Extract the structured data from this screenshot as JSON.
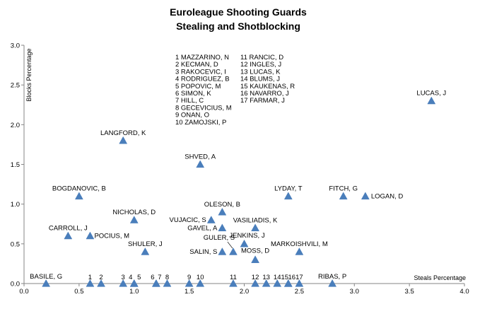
{
  "chart_data": {
    "type": "scatter",
    "title": "Euroleague Shooting Guards",
    "subtitle": "Stealing and Shotblocking",
    "xlabel": "Steals Percentage",
    "ylabel": "Blocks Percentage",
    "xlim": [
      0,
      4
    ],
    "ylim": [
      0,
      3
    ],
    "x_ticks": [
      "0.0",
      "0.5",
      "1.0",
      "1.5",
      "2.0",
      "2.5",
      "3.0",
      "3.5",
      "4.0"
    ],
    "y_ticks": [
      "0.0",
      "0.5",
      "1.0",
      "1.5",
      "2.0",
      "2.5",
      "3.0"
    ],
    "grid": false,
    "marker_color": "#4a7ebb",
    "points": [
      {
        "label": "LUCAS, J",
        "x": 3.7,
        "y": 2.3
      },
      {
        "label": "LANGFORD, K",
        "x": 0.9,
        "y": 1.8
      },
      {
        "label": "SHVED, A",
        "x": 1.6,
        "y": 1.5
      },
      {
        "label": "BOGDANOVIC, B",
        "x": 0.5,
        "y": 1.1
      },
      {
        "label": "LYDAY, T",
        "x": 2.4,
        "y": 1.1
      },
      {
        "label": "FITCH, G",
        "x": 2.9,
        "y": 1.1
      },
      {
        "label": "LOGAN, D",
        "x": 3.1,
        "y": 1.1
      },
      {
        "label": "OLESON, B",
        "x": 1.8,
        "y": 0.9
      },
      {
        "label": "NICHOLAS, D",
        "x": 1.0,
        "y": 0.8
      },
      {
        "label": "VUJACIC, S",
        "x": 1.7,
        "y": 0.8
      },
      {
        "label": "VASILIADIS, K",
        "x": 2.1,
        "y": 0.7
      },
      {
        "label": "GAVEL, A",
        "x": 1.8,
        "y": 0.7
      },
      {
        "label": "CARROLL, J",
        "x": 0.4,
        "y": 0.6
      },
      {
        "label": "POCIUS, M",
        "x": 0.6,
        "y": 0.6
      },
      {
        "label": "JENKINS, J",
        "x": 2.0,
        "y": 0.5
      },
      {
        "label": "GULER, S",
        "x": 1.9,
        "y": 0.4
      },
      {
        "label": "SHULER, J",
        "x": 1.1,
        "y": 0.4
      },
      {
        "label": "SALIN, S",
        "x": 1.8,
        "y": 0.4
      },
      {
        "label": "MARKOISHVILI, M",
        "x": 2.5,
        "y": 0.4
      },
      {
        "label": "MOSS, D",
        "x": 2.1,
        "y": 0.3
      },
      {
        "label": "BASILE, G",
        "x": 0.2,
        "y": 0.0
      },
      {
        "label": "RIBAS, P",
        "x": 2.8,
        "y": 0.0
      },
      {
        "label": "1",
        "x": 0.6,
        "y": 0.0
      },
      {
        "label": "2",
        "x": 0.7,
        "y": 0.0
      },
      {
        "label": "3",
        "x": 0.9,
        "y": 0.0
      },
      {
        "label": "4",
        "x": 1.0,
        "y": 0.0
      },
      {
        "label": "5",
        "x": 1.0,
        "y": 0.0
      },
      {
        "label": "6",
        "x": 1.2,
        "y": 0.0
      },
      {
        "label": "7",
        "x": 1.2,
        "y": 0.0
      },
      {
        "label": "8",
        "x": 1.3,
        "y": 0.0
      },
      {
        "label": "9",
        "x": 1.5,
        "y": 0.0
      },
      {
        "label": "10",
        "x": 1.6,
        "y": 0.0
      },
      {
        "label": "11",
        "x": 1.9,
        "y": 0.0
      },
      {
        "label": "12",
        "x": 2.1,
        "y": 0.0
      },
      {
        "label": "13",
        "x": 2.2,
        "y": 0.0
      },
      {
        "label": "14",
        "x": 2.3,
        "y": 0.0
      },
      {
        "label": "15",
        "x": 2.4,
        "y": 0.0
      },
      {
        "label": "16",
        "x": 2.4,
        "y": 0.0
      },
      {
        "label": "17",
        "x": 2.5,
        "y": 0.0
      }
    ],
    "legend_key": [
      "1  MAZZARINO, N",
      "2  KECMAN, D",
      "3  RAKOCEVIC, I",
      "4  RODRIGUEZ, B",
      "5  POPOVIC, M",
      "6  SIMON, K",
      "7  HILL, C",
      "8  GECEVICIUS, M",
      "9  ONAN, O",
      "10  ZAMOJSKI, P",
      "11  RANCIC, D",
      "12  INGLES, J",
      "13  LUCAS, K",
      "14  BLUMS, J",
      "15  KAUKENAS, R",
      "16  NAVARRO, J",
      "17  FARMAR, J"
    ]
  }
}
